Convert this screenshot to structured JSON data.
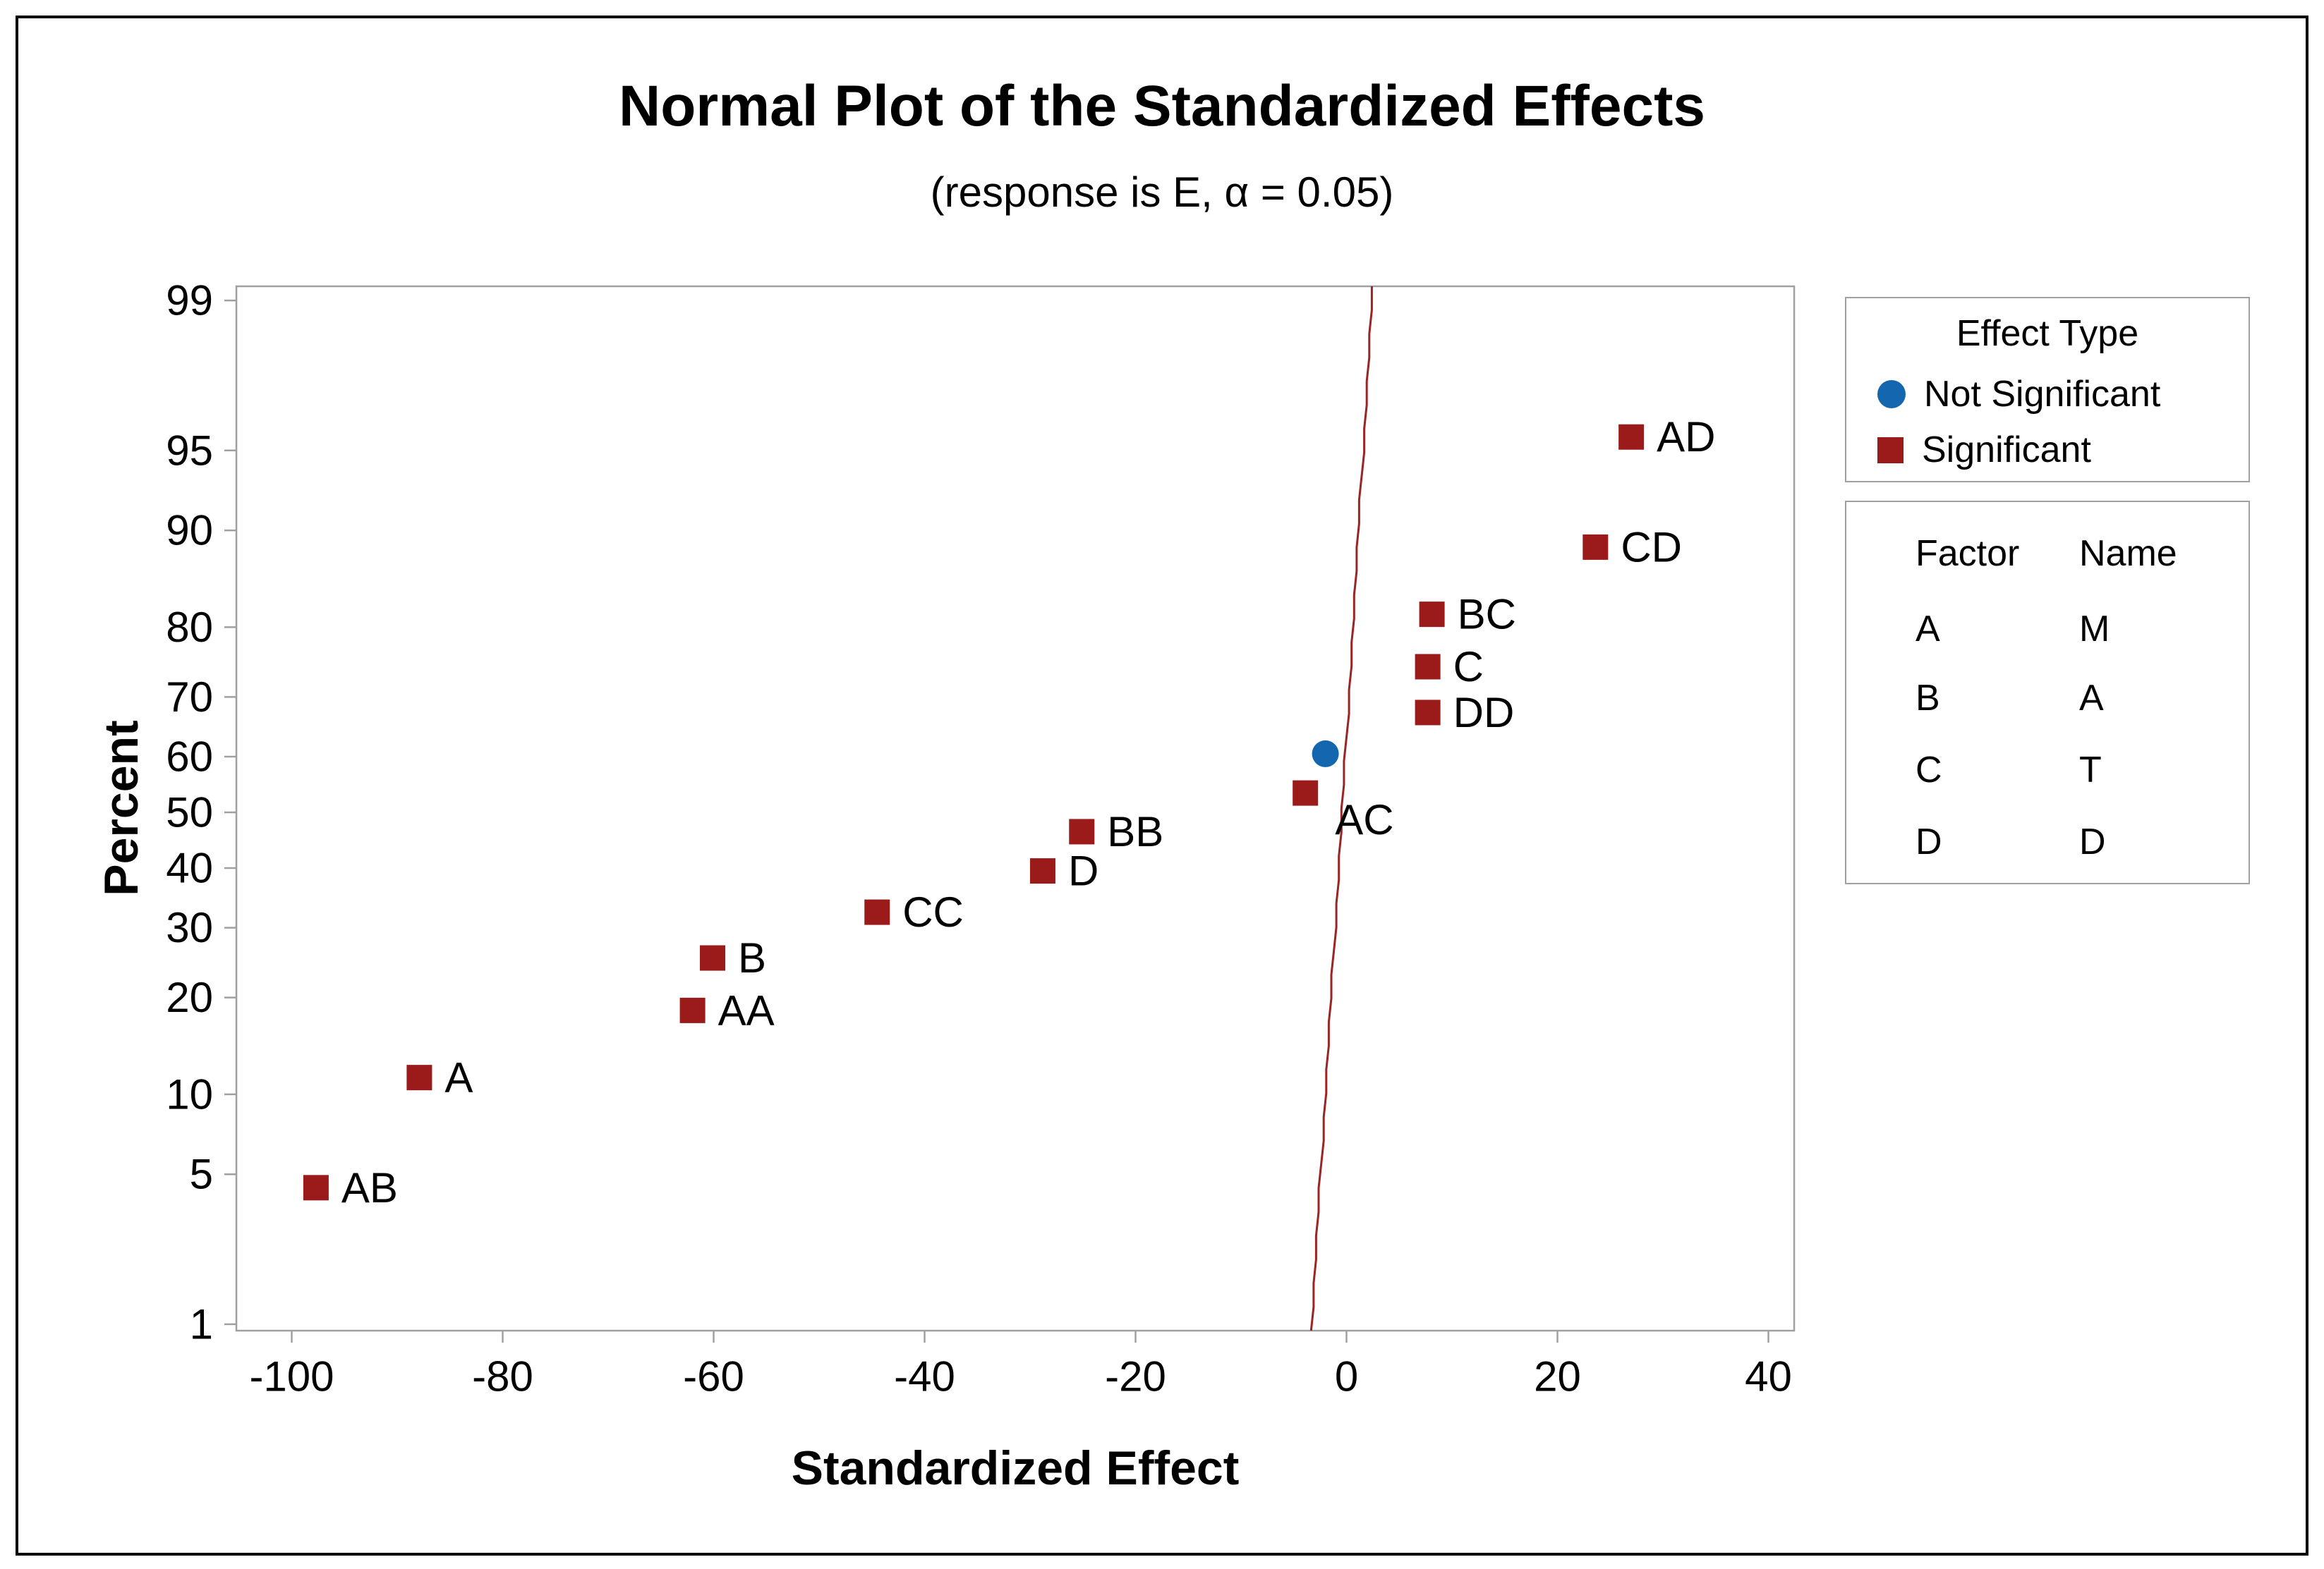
{
  "figure": {
    "title": "Normal Plot of the Standardized Effects",
    "subtitle": "(response is E, α = 0.05)"
  },
  "axes": {
    "x_label": "Standardized Effect",
    "y_label": "Percent"
  },
  "legend": {
    "title": "Effect Type",
    "items": [
      {
        "label": "Not Significant",
        "marker": "circle-icon",
        "color": "#1466ae"
      },
      {
        "label": "Significant",
        "marker": "square-icon",
        "color": "#9b1b1b"
      }
    ]
  },
  "factors": {
    "col1": "Factor",
    "col2": "Name",
    "rows": [
      {
        "factor": "A",
        "name": "M"
      },
      {
        "factor": "B",
        "name": "A"
      },
      {
        "factor": "C",
        "name": "T"
      },
      {
        "factor": "D",
        "name": "D"
      }
    ]
  },
  "chart_data": {
    "type": "scatter",
    "title": "Normal Plot of the Standardized Effects",
    "subtitle": "(response is E, α = 0.05)",
    "xlabel": "Standardized Effect",
    "ylabel": "Percent",
    "y_scale": "normal-probability",
    "grid": false,
    "legend_position": "right",
    "xlim": [
      -105,
      42.5
    ],
    "x_ticks": [
      -100,
      -80,
      -60,
      -40,
      -20,
      0,
      20,
      40
    ],
    "y_ticks": [
      99,
      95,
      90,
      80,
      70,
      60,
      50,
      40,
      30,
      20,
      10,
      5,
      1
    ],
    "points": [
      {
        "label": "AB",
        "x": -97.7,
        "percent": 4.4,
        "significant": true
      },
      {
        "label": "A",
        "x": -87.9,
        "percent": 11.4,
        "significant": true
      },
      {
        "label": "AA",
        "x": -62.0,
        "percent": 18.4,
        "significant": true
      },
      {
        "label": "B",
        "x": -60.1,
        "percent": 25.4,
        "significant": true
      },
      {
        "label": "CC",
        "x": -44.5,
        "percent": 32.5,
        "significant": true
      },
      {
        "label": "D",
        "x": -28.8,
        "percent": 39.5,
        "significant": true
      },
      {
        "label": "BB",
        "x": -25.1,
        "percent": 46.5,
        "significant": true
      },
      {
        "label": "AC",
        "x": -3.9,
        "percent": 53.5,
        "significant": true,
        "label_dx": 42,
        "label_dy": 38
      },
      {
        "label": "",
        "x": -2.0,
        "percent": 60.5,
        "significant": false
      },
      {
        "label": "DD",
        "x": 7.7,
        "percent": 67.5,
        "significant": true
      },
      {
        "label": "C",
        "x": 7.7,
        "percent": 74.6,
        "significant": true
      },
      {
        "label": "BC",
        "x": 8.1,
        "percent": 81.6,
        "significant": true
      },
      {
        "label": "CD",
        "x": 23.6,
        "percent": 88.6,
        "significant": true
      },
      {
        "label": "AD",
        "x": 27.0,
        "percent": 95.6,
        "significant": true
      }
    ],
    "fitted_line": {
      "mu": -0.43,
      "sigma": 1.225,
      "color": "#9b2424"
    },
    "colors": {
      "significant": "#9b1b1b",
      "not_significant": "#1466ae",
      "axis": "#a0a0a0",
      "text": "#000000"
    }
  }
}
